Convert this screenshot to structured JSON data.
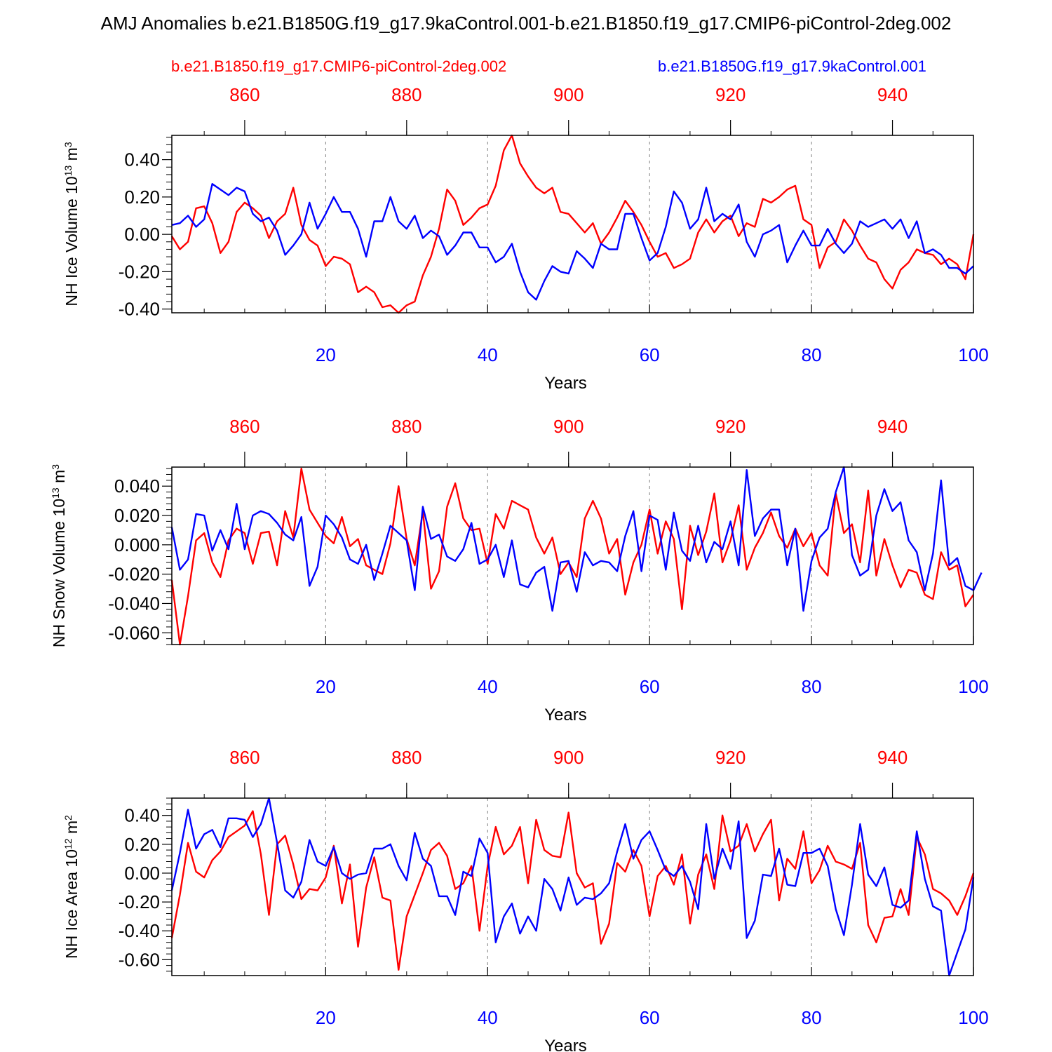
{
  "title": "AMJ Anomalies b.e21.B1850G.f19_g17.9kaControl.001-b.e21.B1850.f19_g17.CMIP6-piControl-2deg.002",
  "legend": {
    "red_label": "b.e21.B1850.f19_g17.CMIP6-piControl-2deg.002",
    "blue_label": "b.e21.B1850G.f19_g17.9kaControl.001"
  },
  "colors": {
    "red": "#ff0000",
    "blue": "#0000ff",
    "axis": "#000000",
    "grid": "#808080"
  },
  "chart_data": [
    {
      "type": "line",
      "ylabel": "NH Ice Volume 10",
      "ylabel_sup": "13",
      "ylabel_unit": " m",
      "ylabel_unit_sup": "3",
      "xlabel": "Years",
      "xlim": [
        1,
        100
      ],
      "ylim": [
        -0.42,
        0.53
      ],
      "yticks": [
        -0.4,
        -0.2,
        0.0,
        0.2,
        0.4
      ],
      "ytick_labels": [
        "-0.40",
        "-0.20",
        "0.00",
        "0.20",
        "0.40"
      ],
      "bottom_xticks": [
        20,
        40,
        60,
        80,
        100
      ],
      "bottom_xtick_labels": [
        "20",
        "40",
        "60",
        "80",
        "100"
      ],
      "top_xticks": [
        860,
        880,
        900,
        920,
        940
      ],
      "top_xtick_labels": [
        "860",
        "880",
        "900",
        "920",
        "940"
      ],
      "top_axis_offset": 850,
      "series": [
        {
          "name": "b.e21.B1850.f19_g17.CMIP6-piControl-2deg.002",
          "color": "red",
          "values": [
            -0.01,
            -0.08,
            -0.04,
            0.14,
            0.15,
            0.06,
            -0.1,
            -0.04,
            0.12,
            0.17,
            0.14,
            0.1,
            -0.02,
            0.07,
            0.11,
            0.25,
            0.05,
            -0.03,
            -0.06,
            -0.17,
            -0.12,
            -0.13,
            -0.16,
            -0.31,
            -0.28,
            -0.31,
            -0.39,
            -0.38,
            -0.42,
            -0.38,
            -0.36,
            -0.22,
            -0.12,
            0.03,
            0.24,
            0.18,
            0.05,
            0.09,
            0.14,
            0.16,
            0.26,
            0.45,
            0.53,
            0.38,
            0.31,
            0.25,
            0.22,
            0.25,
            0.12,
            0.11,
            0.06,
            0.01,
            0.06,
            -0.05,
            0.01,
            0.09,
            0.18,
            0.12,
            0.05,
            -0.04,
            -0.12,
            -0.1,
            -0.18,
            -0.16,
            -0.13,
            0.01,
            0.08,
            0.01,
            0.07,
            0.1,
            -0.01,
            0.06,
            0.04,
            0.19,
            0.17,
            0.2,
            0.24,
            0.26,
            0.08,
            0.05,
            -0.18,
            -0.07,
            -0.04,
            0.08,
            0.02,
            -0.06,
            -0.13,
            -0.15,
            -0.24,
            -0.29,
            -0.19,
            -0.15,
            -0.08,
            -0.1,
            -0.11,
            -0.16,
            -0.13,
            -0.16,
            -0.24,
            0.0
          ]
        },
        {
          "name": "b.e21.B1850G.f19_g17.9kaControl.001",
          "color": "blue",
          "values": [
            0.05,
            0.06,
            0.1,
            0.04,
            0.08,
            0.27,
            0.24,
            0.21,
            0.25,
            0.23,
            0.11,
            0.07,
            0.09,
            0.02,
            -0.11,
            -0.06,
            0.0,
            0.17,
            0.03,
            0.11,
            0.2,
            0.12,
            0.12,
            0.03,
            -0.12,
            0.07,
            0.07,
            0.2,
            0.07,
            0.03,
            0.1,
            -0.02,
            0.02,
            -0.01,
            -0.11,
            -0.06,
            0.01,
            0.01,
            -0.07,
            -0.07,
            -0.15,
            -0.12,
            -0.05,
            -0.2,
            -0.31,
            -0.35,
            -0.25,
            -0.17,
            -0.2,
            -0.21,
            -0.09,
            -0.13,
            -0.18,
            -0.05,
            -0.08,
            -0.08,
            0.11,
            0.11,
            -0.02,
            -0.14,
            -0.1,
            0.04,
            0.23,
            0.17,
            0.03,
            0.08,
            0.25,
            0.07,
            0.11,
            0.08,
            0.16,
            -0.04,
            -0.12,
            0.0,
            0.02,
            0.05,
            -0.15,
            -0.06,
            0.02,
            -0.06,
            -0.06,
            0.03,
            -0.05,
            -0.1,
            -0.05,
            0.07,
            0.04,
            0.06,
            0.08,
            0.03,
            0.08,
            -0.02,
            0.07,
            -0.1,
            -0.08,
            -0.11,
            -0.18,
            -0.18,
            -0.21,
            -0.17
          ]
        }
      ]
    },
    {
      "type": "line",
      "ylabel": "NH Snow Volume 10",
      "ylabel_sup": "13",
      "ylabel_unit": " m",
      "ylabel_unit_sup": "3",
      "xlabel": "Years",
      "xlim": [
        1,
        100
      ],
      "ylim": [
        -0.068,
        0.053
      ],
      "yticks": [
        -0.06,
        -0.04,
        -0.02,
        0.0,
        0.02,
        0.04
      ],
      "ytick_labels": [
        "-0.060",
        "-0.040",
        "-0.020",
        "0.000",
        "0.020",
        "0.040"
      ],
      "bottom_xticks": [
        20,
        40,
        60,
        80,
        100
      ],
      "bottom_xtick_labels": [
        "20",
        "40",
        "60",
        "80",
        "100"
      ],
      "top_xticks": [
        860,
        880,
        900,
        920,
        940
      ],
      "top_xtick_labels": [
        "860",
        "880",
        "900",
        "920",
        "940"
      ],
      "top_axis_offset": 850,
      "series": [
        {
          "name": "b.e21.B1850.f19_g17.CMIP6-piControl-2deg.002",
          "color": "red",
          "values": [
            -0.024,
            -0.068,
            -0.035,
            0.003,
            0.008,
            -0.012,
            -0.022,
            0.003,
            0.011,
            0.008,
            -0.013,
            0.008,
            0.009,
            -0.014,
            0.023,
            0.005,
            0.052,
            0.024,
            0.015,
            0.006,
            0.001,
            0.019,
            -0.001,
            0.004,
            -0.014,
            -0.017,
            -0.02,
            0.001,
            0.04,
            0.004,
            -0.014,
            0.023,
            -0.03,
            -0.018,
            0.026,
            0.042,
            0.018,
            0.01,
            0.011,
            -0.013,
            0.021,
            0.011,
            0.03,
            0.027,
            0.024,
            0.005,
            -0.006,
            0.005,
            -0.02,
            -0.012,
            -0.022,
            0.018,
            0.03,
            0.018,
            -0.006,
            0.004,
            -0.034,
            -0.012,
            0.0,
            0.024,
            -0.006,
            0.016,
            0.004,
            -0.044,
            0.013,
            -0.007,
            0.009,
            0.035,
            -0.012,
            0.003,
            0.027,
            -0.017,
            -0.002,
            0.008,
            0.022,
            0.006,
            -0.002,
            0.011,
            -0.001,
            0.008,
            -0.014,
            -0.021,
            0.035,
            0.008,
            0.014,
            -0.012,
            0.037,
            -0.021,
            0.004,
            -0.014,
            -0.029,
            -0.017,
            -0.019,
            -0.034,
            -0.037,
            -0.005,
            -0.017,
            -0.014,
            -0.042,
            -0.034
          ]
        },
        {
          "name": "b.e21.B1850G.f19_g17.9kaControl.001",
          "color": "blue",
          "values": [
            0.012,
            -0.017,
            -0.01,
            0.021,
            0.02,
            -0.004,
            0.01,
            -0.003,
            0.028,
            -0.003,
            0.02,
            0.023,
            0.021,
            0.015,
            0.007,
            0.003,
            0.019,
            -0.028,
            -0.015,
            0.02,
            0.014,
            0.005,
            -0.01,
            -0.013,
            0.0,
            -0.024,
            -0.006,
            0.013,
            0.008,
            0.003,
            -0.031,
            0.026,
            0.004,
            0.007,
            -0.008,
            -0.011,
            -0.003,
            0.015,
            -0.013,
            -0.01,
            0.0,
            -0.022,
            0.003,
            -0.027,
            -0.029,
            -0.019,
            -0.015,
            -0.045,
            -0.012,
            -0.011,
            -0.032,
            -0.005,
            -0.014,
            -0.011,
            -0.012,
            -0.018,
            0.006,
            0.023,
            -0.018,
            0.02,
            0.017,
            -0.017,
            0.022,
            -0.004,
            -0.011,
            0.013,
            -0.012,
            0.002,
            -0.003,
            0.016,
            -0.014,
            0.051,
            0.006,
            0.018,
            0.024,
            0.024,
            -0.014,
            0.011,
            -0.045,
            -0.011,
            0.005,
            0.011,
            0.036,
            0.053,
            -0.007,
            -0.021,
            -0.017,
            0.02,
            0.038,
            0.023,
            0.029,
            0.003,
            -0.005,
            -0.031,
            -0.006,
            0.044,
            -0.014,
            -0.009,
            -0.028,
            -0.031,
            -0.019
          ]
        }
      ]
    },
    {
      "type": "line",
      "ylabel": "NH Ice Area 10",
      "ylabel_sup": "12",
      "ylabel_unit": " m",
      "ylabel_unit_sup": "2",
      "xlabel": "Years",
      "xlim": [
        1,
        100
      ],
      "ylim": [
        -0.71,
        0.52
      ],
      "yticks": [
        -0.6,
        -0.4,
        -0.2,
        0.0,
        0.2,
        0.4
      ],
      "ytick_labels": [
        "-0.60",
        "-0.40",
        "-0.20",
        "0.00",
        "0.20",
        "0.40"
      ],
      "bottom_xticks": [
        20,
        40,
        60,
        80,
        100
      ],
      "bottom_xtick_labels": [
        "20",
        "40",
        "60",
        "80",
        "100"
      ],
      "top_xticks": [
        860,
        880,
        900,
        920,
        940
      ],
      "top_xtick_labels": [
        "860",
        "880",
        "900",
        "920",
        "940"
      ],
      "top_axis_offset": 850,
      "series": [
        {
          "name": "b.e21.B1850.f19_g17.CMIP6-piControl-2deg.002",
          "color": "red",
          "values": [
            -0.45,
            -0.15,
            0.21,
            0.01,
            -0.03,
            0.09,
            0.15,
            0.25,
            0.29,
            0.33,
            0.43,
            0.13,
            -0.29,
            0.2,
            0.26,
            0.06,
            -0.18,
            -0.11,
            -0.12,
            -0.03,
            0.19,
            -0.21,
            0.06,
            -0.51,
            -0.1,
            0.11,
            -0.17,
            -0.19,
            -0.67,
            -0.3,
            -0.15,
            0.0,
            0.16,
            0.21,
            0.12,
            -0.11,
            -0.07,
            0.05,
            -0.4,
            0.05,
            0.32,
            0.13,
            0.19,
            0.32,
            -0.07,
            0.37,
            0.16,
            0.12,
            0.11,
            0.42,
            0.0,
            -0.1,
            -0.07,
            -0.49,
            -0.35,
            0.07,
            0.01,
            0.16,
            0.05,
            -0.3,
            -0.02,
            0.05,
            -0.08,
            0.13,
            -0.35,
            -0.01,
            0.13,
            -0.11,
            0.4,
            0.15,
            0.19,
            0.34,
            0.15,
            0.27,
            0.37,
            -0.19,
            0.1,
            0.03,
            0.29,
            -0.07,
            0.02,
            0.19,
            0.08,
            0.06,
            0.03,
            0.21,
            -0.36,
            -0.48,
            -0.31,
            -0.3,
            -0.11,
            -0.29,
            0.25,
            0.13,
            -0.11,
            -0.14,
            -0.19,
            -0.29,
            -0.16,
            0.0
          ]
        },
        {
          "name": "b.e21.B1850G.f19_g17.9kaControl.001",
          "color": "blue",
          "values": [
            -0.12,
            0.14,
            0.44,
            0.17,
            0.27,
            0.3,
            0.18,
            0.38,
            0.38,
            0.37,
            0.25,
            0.34,
            0.52,
            0.21,
            -0.12,
            -0.17,
            -0.06,
            0.23,
            0.08,
            0.05,
            0.18,
            0.0,
            -0.04,
            -0.01,
            0.0,
            0.17,
            0.17,
            0.2,
            0.05,
            -0.05,
            0.28,
            0.1,
            0.05,
            -0.16,
            -0.16,
            -0.29,
            0.01,
            -0.02,
            0.24,
            0.14,
            -0.48,
            -0.3,
            -0.21,
            -0.42,
            -0.3,
            -0.4,
            -0.04,
            -0.11,
            -0.26,
            -0.03,
            -0.22,
            -0.17,
            -0.18,
            -0.14,
            -0.07,
            0.15,
            0.34,
            0.1,
            0.23,
            0.29,
            0.16,
            0.02,
            -0.02,
            0.05,
            -0.06,
            -0.25,
            0.34,
            -0.04,
            0.17,
            0.03,
            0.36,
            -0.45,
            -0.33,
            -0.01,
            -0.02,
            0.17,
            -0.08,
            -0.09,
            0.14,
            0.14,
            0.17,
            0.05,
            -0.25,
            -0.43,
            -0.08,
            0.34,
            -0.01,
            -0.09,
            0.04,
            -0.22,
            -0.24,
            -0.19,
            0.29,
            -0.04,
            -0.23,
            -0.26,
            -0.71,
            -0.55,
            -0.39,
            -0.03
          ]
        }
      ]
    }
  ]
}
